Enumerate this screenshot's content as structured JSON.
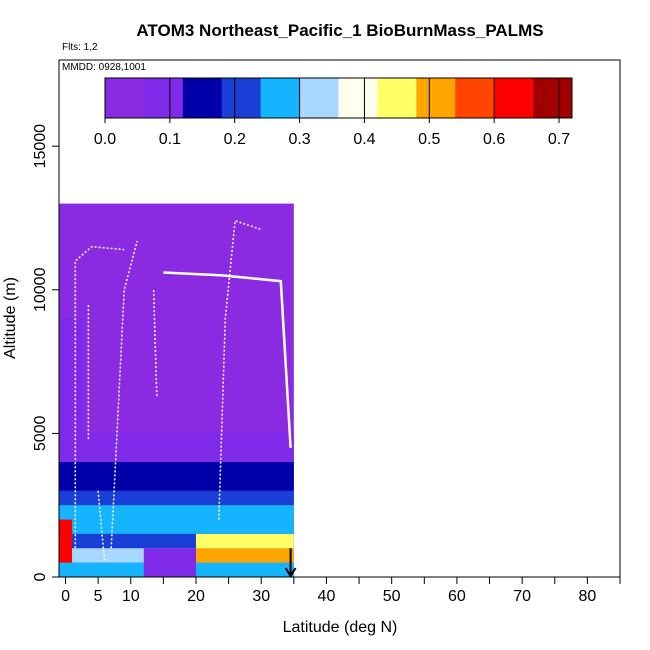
{
  "chart_data": {
    "type": "heatmap",
    "title": "ATOM3 Northeast_Pacific_1 BioBurnMass_PALMS",
    "flights_note": "Flts: 1,2",
    "date_note": "MMDD: 0928,1001",
    "xlabel": "Latitude (deg N)",
    "ylabel": "Altitude (m)",
    "xlim": [
      -1,
      85
    ],
    "ylim": [
      0,
      18000
    ],
    "x_ticks_labeled": [
      0,
      5,
      10,
      20,
      30,
      40,
      50,
      60,
      70,
      80
    ],
    "x_ticks_minor": [
      15,
      25,
      35,
      45,
      55,
      65,
      75,
      85
    ],
    "y_ticks": [
      0,
      5000,
      10000,
      15000
    ],
    "colorbar": {
      "min": 0.0,
      "max": 0.72,
      "ticks": [
        0.0,
        0.1,
        0.2,
        0.3,
        0.4,
        0.5,
        0.6,
        0.7
      ],
      "tick_labels": [
        "0.0",
        "0.1",
        "0.2",
        "0.3",
        "0.4",
        "0.5",
        "0.6",
        "0.7"
      ],
      "colors": [
        "#8a2be2",
        "#7f2ae8",
        "#0000a8",
        "#1a3fd6",
        "#14b4ff",
        "#a8d8ff",
        "#fffff0",
        "#ffff66",
        "#ffa500",
        "#ff4500",
        "#ff0000",
        "#a00000"
      ]
    },
    "arrow_latitude": 34.5,
    "blocks": [
      {
        "lat": [
          -1,
          35
        ],
        "alt": [
          0,
          13000
        ],
        "value": 0.02
      },
      {
        "lat": [
          -1,
          35
        ],
        "alt": [
          4000,
          5000
        ],
        "value": 0.06
      },
      {
        "lat": [
          -1,
          35
        ],
        "alt": [
          3000,
          4000
        ],
        "value": 0.12
      },
      {
        "lat": [
          -1,
          35
        ],
        "alt": [
          2500,
          3000
        ],
        "value": 0.22
      },
      {
        "lat": [
          -1,
          35
        ],
        "alt": [
          2000,
          2500
        ],
        "value": 0.24
      },
      {
        "lat": [
          -1,
          35
        ],
        "alt": [
          1500,
          2000
        ],
        "value": 0.27
      },
      {
        "lat": [
          -1,
          35
        ],
        "alt": [
          1000,
          1500
        ],
        "value": 0.22
      },
      {
        "lat": [
          -1,
          35
        ],
        "alt": [
          500,
          1000
        ],
        "value": 0.3
      },
      {
        "lat": [
          -1,
          35
        ],
        "alt": [
          0,
          500
        ],
        "value": 0.28
      },
      {
        "lat": [
          20,
          35
        ],
        "alt": [
          500,
          1000
        ],
        "value": 0.5
      },
      {
        "lat": [
          20,
          35
        ],
        "alt": [
          1000,
          1500
        ],
        "value": 0.47
      },
      {
        "lat": [
          -1,
          1
        ],
        "alt": [
          500,
          2000
        ],
        "value": 0.6
      },
      {
        "lat": [
          12,
          20
        ],
        "alt": [
          0,
          1000
        ],
        "value": 0.1
      },
      {
        "lat": [
          -1,
          3
        ],
        "alt": [
          5000,
          9000
        ],
        "value": 0.1
      }
    ]
  }
}
